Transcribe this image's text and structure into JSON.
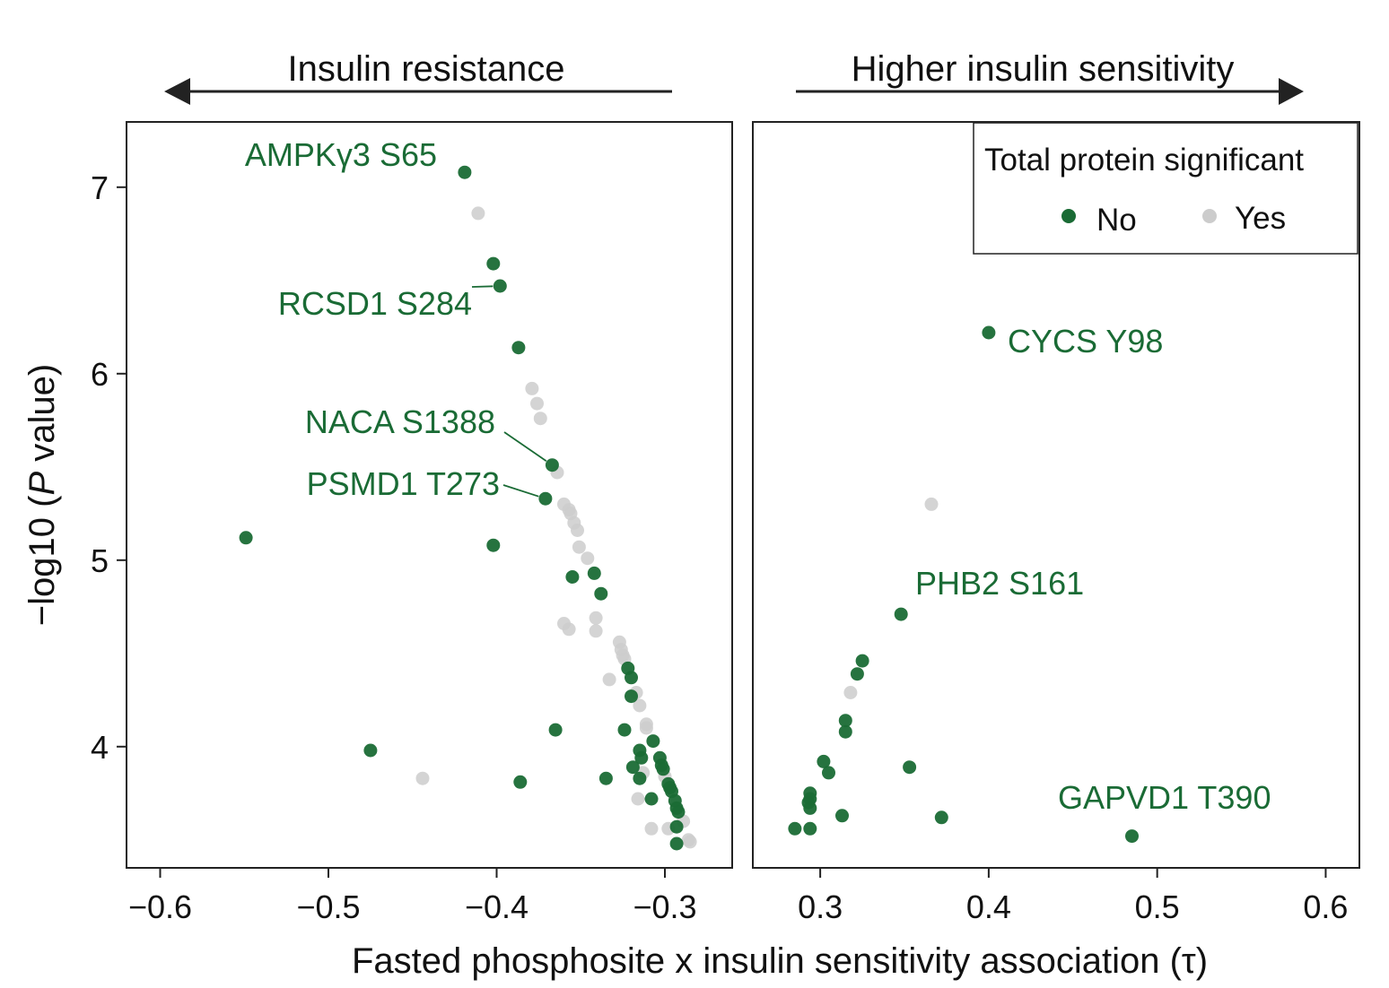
{
  "chart_data": {
    "type": "scatter",
    "x_label": "Fasted phosphosite x insulin sensitivity association (τ)",
    "y_label": "−log10 (P value)",
    "y_label_parts": {
      "pre": "−log10 (",
      "italic": "P",
      "post": " value)"
    },
    "y_range": [
      3.35,
      7.35
    ],
    "y_ticks": [
      4,
      5,
      6,
      7
    ],
    "y_tick_labels": [
      "4",
      "5",
      "6",
      "7"
    ],
    "colors": {
      "no": "#1a6b35",
      "yes": "#cccccc",
      "yes_overlap": "#8a8a8a",
      "text_green": "#1a6b35",
      "axis": "#222222"
    },
    "arrows": [
      {
        "panel": "left",
        "text": "Insulin resistance",
        "direction": "left"
      },
      {
        "panel": "right",
        "text": "Higher insulin sensitivity",
        "direction": "right"
      }
    ],
    "legend": {
      "title": "Total protein significant",
      "entries": [
        {
          "key": "no",
          "label": "No"
        },
        {
          "key": "yes",
          "label": "Yes"
        }
      ],
      "position": "top-right of right panel"
    },
    "panels": [
      {
        "id": "left",
        "x_range": [
          -0.62,
          -0.26
        ],
        "x_ticks": [
          -0.6,
          -0.5,
          -0.4,
          -0.3
        ],
        "x_tick_labels": [
          "−0.6",
          "−0.5",
          "−0.4",
          "−0.3"
        ],
        "points": [
          {
            "x": -0.419,
            "y": 7.08,
            "g": "no"
          },
          {
            "x": -0.411,
            "y": 6.86,
            "g": "yes"
          },
          {
            "x": -0.402,
            "y": 6.59,
            "g": "no"
          },
          {
            "x": -0.398,
            "y": 6.47,
            "g": "no"
          },
          {
            "x": -0.387,
            "y": 6.14,
            "g": "no"
          },
          {
            "x": -0.379,
            "y": 5.92,
            "g": "yes"
          },
          {
            "x": -0.376,
            "y": 5.84,
            "g": "yes"
          },
          {
            "x": -0.374,
            "y": 5.76,
            "g": "yes"
          },
          {
            "x": -0.367,
            "y": 5.51,
            "g": "no"
          },
          {
            "x": -0.364,
            "y": 5.47,
            "g": "yes"
          },
          {
            "x": -0.371,
            "y": 5.33,
            "g": "no"
          },
          {
            "x": -0.36,
            "y": 5.3,
            "g": "yes"
          },
          {
            "x": -0.357,
            "y": 5.27,
            "g": "yes"
          },
          {
            "x": -0.356,
            "y": 5.25,
            "g": "yes"
          },
          {
            "x": -0.354,
            "y": 5.2,
            "g": "yes"
          },
          {
            "x": -0.352,
            "y": 5.16,
            "g": "yes"
          },
          {
            "x": -0.351,
            "y": 5.07,
            "g": "yes"
          },
          {
            "x": -0.346,
            "y": 5.01,
            "g": "yes"
          },
          {
            "x": -0.549,
            "y": 5.12,
            "g": "no"
          },
          {
            "x": -0.402,
            "y": 5.08,
            "g": "no"
          },
          {
            "x": -0.355,
            "y": 4.91,
            "g": "no"
          },
          {
            "x": -0.342,
            "y": 4.93,
            "g": "no"
          },
          {
            "x": -0.338,
            "y": 4.82,
            "g": "no"
          },
          {
            "x": -0.341,
            "y": 4.69,
            "g": "yes"
          },
          {
            "x": -0.36,
            "y": 4.66,
            "g": "yes"
          },
          {
            "x": -0.357,
            "y": 4.63,
            "g": "yes"
          },
          {
            "x": -0.341,
            "y": 4.62,
            "g": "yes"
          },
          {
            "x": -0.327,
            "y": 4.56,
            "g": "yes"
          },
          {
            "x": -0.326,
            "y": 4.52,
            "g": "yes"
          },
          {
            "x": -0.325,
            "y": 4.49,
            "g": "yes"
          },
          {
            "x": -0.324,
            "y": 4.47,
            "g": "yes"
          },
          {
            "x": -0.322,
            "y": 4.42,
            "g": "no"
          },
          {
            "x": -0.32,
            "y": 4.37,
            "g": "no"
          },
          {
            "x": -0.333,
            "y": 4.36,
            "g": "yes"
          },
          {
            "x": -0.317,
            "y": 4.29,
            "g": "yes"
          },
          {
            "x": -0.32,
            "y": 4.27,
            "g": "no"
          },
          {
            "x": -0.315,
            "y": 4.22,
            "g": "yes"
          },
          {
            "x": -0.311,
            "y": 4.12,
            "g": "yes"
          },
          {
            "x": -0.311,
            "y": 4.1,
            "g": "yes"
          },
          {
            "x": -0.365,
            "y": 4.09,
            "g": "no"
          },
          {
            "x": -0.324,
            "y": 4.09,
            "g": "no"
          },
          {
            "x": -0.307,
            "y": 4.03,
            "g": "no"
          },
          {
            "x": -0.475,
            "y": 3.98,
            "g": "no"
          },
          {
            "x": -0.315,
            "y": 3.98,
            "g": "no"
          },
          {
            "x": -0.314,
            "y": 3.94,
            "g": "no"
          },
          {
            "x": -0.303,
            "y": 3.94,
            "g": "no"
          },
          {
            "x": -0.302,
            "y": 3.9,
            "g": "no"
          },
          {
            "x": -0.301,
            "y": 3.88,
            "g": "no"
          },
          {
            "x": -0.319,
            "y": 3.89,
            "g": "no"
          },
          {
            "x": -0.313,
            "y": 3.86,
            "g": "yes"
          },
          {
            "x": -0.335,
            "y": 3.83,
            "g": "no"
          },
          {
            "x": -0.315,
            "y": 3.83,
            "g": "no"
          },
          {
            "x": -0.3,
            "y": 3.84,
            "g": "yes"
          },
          {
            "x": -0.444,
            "y": 3.83,
            "g": "yes"
          },
          {
            "x": -0.386,
            "y": 3.81,
            "g": "no"
          },
          {
            "x": -0.298,
            "y": 3.8,
            "g": "no"
          },
          {
            "x": -0.297,
            "y": 3.78,
            "g": "no"
          },
          {
            "x": -0.296,
            "y": 3.76,
            "g": "no"
          },
          {
            "x": -0.316,
            "y": 3.72,
            "g": "yes"
          },
          {
            "x": -0.308,
            "y": 3.72,
            "g": "no"
          },
          {
            "x": -0.294,
            "y": 3.71,
            "g": "no"
          },
          {
            "x": -0.293,
            "y": 3.67,
            "g": "no"
          },
          {
            "x": -0.292,
            "y": 3.65,
            "g": "no"
          },
          {
            "x": -0.289,
            "y": 3.6,
            "g": "yes"
          },
          {
            "x": -0.293,
            "y": 3.57,
            "g": "no"
          },
          {
            "x": -0.308,
            "y": 3.56,
            "g": "yes"
          },
          {
            "x": -0.298,
            "y": 3.56,
            "g": "yes"
          },
          {
            "x": -0.286,
            "y": 3.5,
            "g": "yes"
          },
          {
            "x": -0.285,
            "y": 3.49,
            "g": "yes"
          },
          {
            "x": -0.293,
            "y": 3.48,
            "g": "no"
          }
        ],
        "annotations": [
          {
            "text": "AMPKγ3 S65",
            "x": -0.419,
            "y": 7.08,
            "leader": false
          },
          {
            "text": "RCSD1 S284",
            "x": -0.398,
            "y": 6.47,
            "leader": true
          },
          {
            "text": "NACA S1388",
            "x": -0.367,
            "y": 5.51,
            "leader": true
          },
          {
            "text": "PSMD1 T273",
            "x": -0.371,
            "y": 5.33,
            "leader": true
          }
        ]
      },
      {
        "id": "right",
        "x_range": [
          0.26,
          0.62
        ],
        "x_ticks": [
          0.3,
          0.4,
          0.5,
          0.6
        ],
        "x_tick_labels": [
          "0.3",
          "0.4",
          "0.5",
          "0.6"
        ],
        "points": [
          {
            "x": 0.4,
            "y": 6.22,
            "g": "no"
          },
          {
            "x": 0.366,
            "y": 5.3,
            "g": "yes"
          },
          {
            "x": 0.348,
            "y": 4.71,
            "g": "no"
          },
          {
            "x": 0.325,
            "y": 4.46,
            "g": "no"
          },
          {
            "x": 0.322,
            "y": 4.39,
            "g": "no"
          },
          {
            "x": 0.318,
            "y": 4.29,
            "g": "yes"
          },
          {
            "x": 0.315,
            "y": 4.14,
            "g": "no"
          },
          {
            "x": 0.315,
            "y": 4.08,
            "g": "no"
          },
          {
            "x": 0.302,
            "y": 3.92,
            "g": "no"
          },
          {
            "x": 0.353,
            "y": 3.89,
            "g": "no"
          },
          {
            "x": 0.305,
            "y": 3.86,
            "g": "no"
          },
          {
            "x": 0.294,
            "y": 3.75,
            "g": "no"
          },
          {
            "x": 0.294,
            "y": 3.72,
            "g": "no"
          },
          {
            "x": 0.293,
            "y": 3.7,
            "g": "no"
          },
          {
            "x": 0.294,
            "y": 3.67,
            "g": "no"
          },
          {
            "x": 0.313,
            "y": 3.63,
            "g": "no"
          },
          {
            "x": 0.372,
            "y": 3.62,
            "g": "no"
          },
          {
            "x": 0.285,
            "y": 3.56,
            "g": "no"
          },
          {
            "x": 0.294,
            "y": 3.56,
            "g": "no"
          },
          {
            "x": 0.485,
            "y": 3.52,
            "g": "no"
          }
        ],
        "annotations": [
          {
            "text": "CYCS Y98",
            "x": 0.4,
            "y": 6.22,
            "leader": false
          },
          {
            "text": "PHB2 S161",
            "x": 0.348,
            "y": 4.71,
            "leader": false
          },
          {
            "text": "GAPVD1 T390",
            "x": 0.485,
            "y": 3.52,
            "leader": false
          }
        ]
      }
    ]
  }
}
